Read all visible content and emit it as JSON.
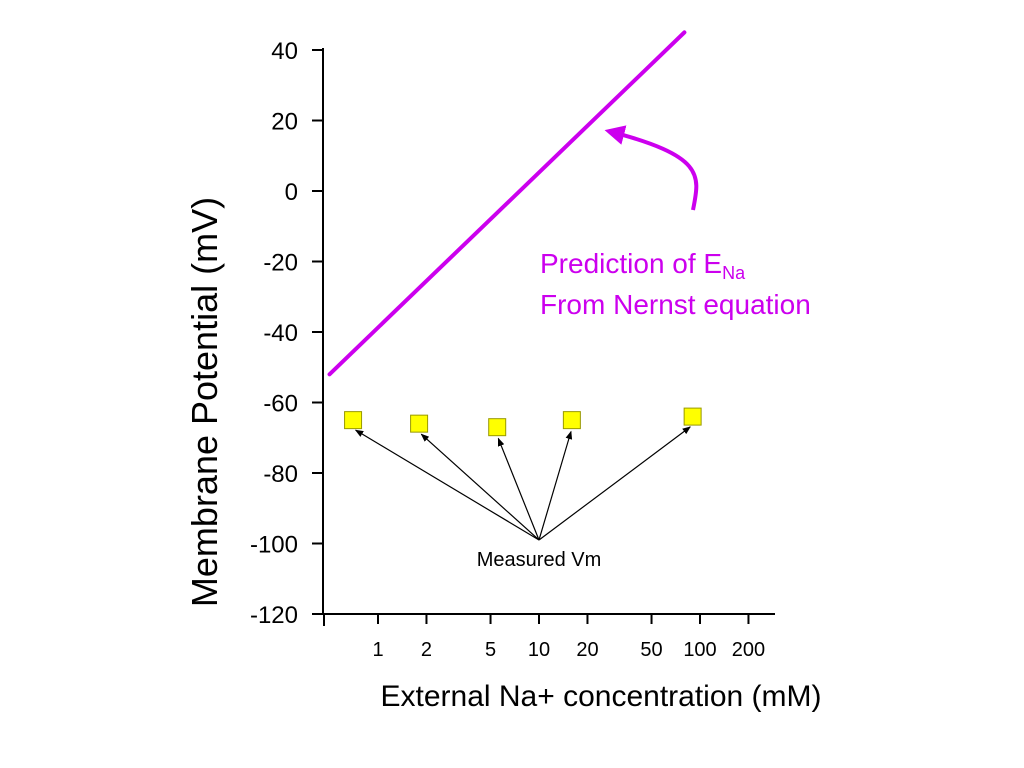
{
  "colors": {
    "prediction_line": "#cc00ee",
    "marker_fill": "#ffff00",
    "marker_stroke": "#999900",
    "axis": "#000000",
    "text": "#000000"
  },
  "chart_data": {
    "type": "scatter",
    "xlabel": "External Na+ concentration (mM)",
    "ylabel": "Membrane Potential (mV)",
    "x_scale": "log",
    "x_ticks": [
      1,
      2,
      5,
      10,
      20,
      50,
      100,
      200
    ],
    "x_tick_labels": [
      "1",
      "2",
      "5",
      "10",
      "20",
      "50",
      "100",
      "200"
    ],
    "ylim": [
      -120,
      40
    ],
    "y_ticks": [
      40,
      20,
      0,
      -20,
      -40,
      -60,
      -80,
      -100,
      -120
    ],
    "y_tick_labels": [
      "40",
      "20",
      "0",
      "-20",
      "-40",
      "-60",
      "-80",
      "-100",
      "-120"
    ],
    "grid": false,
    "series": [
      {
        "kind": "line",
        "points": [
          {
            "x": 0.5,
            "y": -52
          },
          {
            "x": 80,
            "y": 45
          }
        ]
      },
      {
        "kind": "markers",
        "points": [
          {
            "x": 0.7,
            "y": -65
          },
          {
            "x": 1.8,
            "y": -66
          },
          {
            "x": 5.5,
            "y": -67
          },
          {
            "x": 16,
            "y": -65
          },
          {
            "x": 90,
            "y": -64
          }
        ]
      }
    ],
    "annotations": {
      "prediction": {
        "line1_main": "Prediction of E",
        "line1_sub": "Na",
        "line2": "From Nernst equation",
        "arrow_target": {
          "x": 27,
          "y": 17
        }
      },
      "measured": {
        "label": "Measured Vm",
        "arrow_origin": {
          "x": 10,
          "y": -99
        }
      }
    }
  }
}
